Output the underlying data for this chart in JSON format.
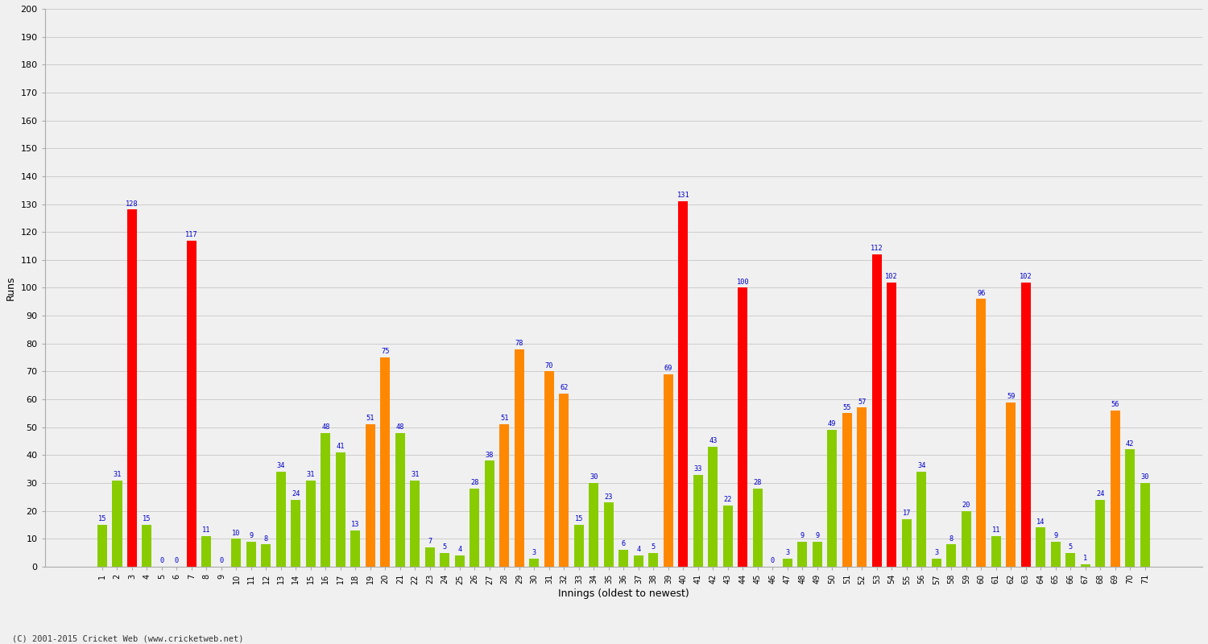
{
  "xlabel": "Innings (oldest to newest)",
  "ylabel": "Runs",
  "ylim": [
    0,
    200
  ],
  "yticks": [
    0,
    10,
    20,
    30,
    40,
    50,
    60,
    70,
    80,
    90,
    100,
    110,
    120,
    130,
    140,
    150,
    160,
    170,
    180,
    190,
    200
  ],
  "copyright": "(C) 2001-2015 Cricket Web (www.cricketweb.net)",
  "bar_color_red": "#ff0000",
  "bar_color_orange": "#ff8800",
  "bar_color_green": "#88cc00",
  "label_color": "#0000cc",
  "background_color": "#f0f0f0",
  "plot_bg_color": "#f0f0f0",
  "grid_color": "#cccccc",
  "innings": [
    1,
    2,
    3,
    4,
    5,
    6,
    7,
    8,
    9,
    10,
    11,
    12,
    13,
    14,
    15,
    16,
    17,
    18,
    19,
    20,
    21,
    22,
    23,
    24,
    25,
    26,
    27,
    28,
    29,
    30,
    31,
    32,
    33,
    34,
    35,
    36,
    37,
    38,
    39,
    40,
    41,
    42,
    43,
    44,
    45,
    46,
    47,
    48,
    49,
    50,
    51,
    52,
    53,
    54,
    55,
    56,
    57,
    58,
    59,
    60,
    61,
    62,
    63,
    64,
    65,
    66,
    67,
    68,
    69,
    70,
    71
  ],
  "values": [
    15,
    31,
    128,
    15,
    0,
    0,
    117,
    11,
    0,
    10,
    9,
    8,
    34,
    24,
    31,
    48,
    41,
    13,
    51,
    75,
    48,
    31,
    7,
    5,
    4,
    28,
    38,
    51,
    78,
    3,
    70,
    62,
    15,
    30,
    23,
    6,
    4,
    5,
    69,
    131,
    33,
    43,
    22,
    100,
    28,
    0,
    3,
    9,
    9,
    49,
    55,
    57,
    112,
    102,
    17,
    34,
    3,
    8,
    20,
    96,
    11,
    59,
    102,
    14,
    9,
    5,
    1,
    24,
    56,
    42,
    30
  ],
  "innings_labels": [
    "1",
    "2",
    "3",
    "4",
    "5",
    "6",
    "7",
    "8",
    "9",
    "10",
    "11",
    "12",
    "13",
    "14",
    "15",
    "16",
    "17",
    "18",
    "19",
    "20",
    "21",
    "22",
    "23",
    "24",
    "25",
    "26",
    "27",
    "28",
    "29",
    "30",
    "31",
    "32",
    "33",
    "34",
    "35",
    "36",
    "37",
    "38",
    "39",
    "40",
    "41",
    "42",
    "43",
    "44",
    "45",
    "46",
    "47",
    "48",
    "49",
    "50",
    "51",
    "52",
    "53",
    "54",
    "55",
    "56",
    "57",
    "58",
    "59",
    "60",
    "61",
    "62",
    "63",
    "64",
    "65",
    "66",
    "67",
    "68",
    "69",
    "70",
    "71"
  ]
}
